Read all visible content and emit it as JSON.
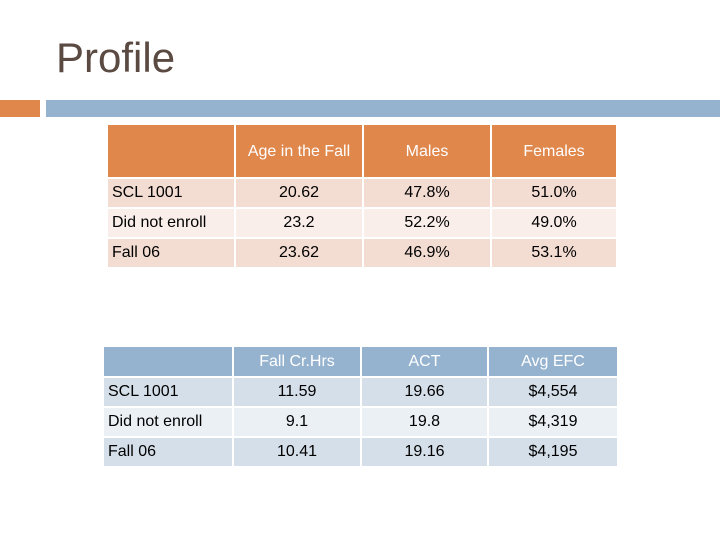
{
  "slide": {
    "title": "Profile"
  },
  "table1": {
    "headers": [
      "",
      "Age in the Fall",
      "Males",
      "Females"
    ],
    "rows": [
      {
        "label": "SCL 1001",
        "cells": [
          "20.62",
          "47.8%",
          "51.0%"
        ]
      },
      {
        "label": "Did not enroll",
        "cells": [
          "23.2",
          "52.2%",
          "49.0%"
        ]
      },
      {
        "label": "Fall 06",
        "cells": [
          "23.62",
          "46.9%",
          "53.1%"
        ]
      }
    ]
  },
  "table2": {
    "headers": [
      "",
      "Fall Cr.Hrs",
      "ACT",
      "Avg EFC"
    ],
    "rows": [
      {
        "label": "SCL 1001",
        "cells": [
          "11.59",
          "19.66",
          "$4,554"
        ]
      },
      {
        "label": "Did not enroll",
        "cells": [
          "9.1",
          "19.8",
          "$4,319"
        ]
      },
      {
        "label": "Fall 06",
        "cells": [
          "10.41",
          "19.16",
          "$4,195"
        ]
      }
    ]
  },
  "colors": {
    "accent_orange": "#e0874c",
    "accent_blue": "#95b3cf",
    "title_text": "#5a4a42"
  }
}
